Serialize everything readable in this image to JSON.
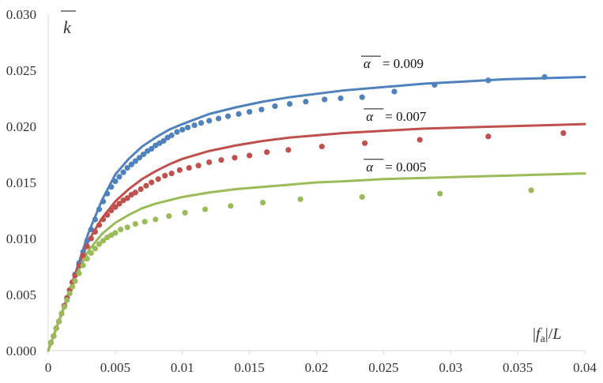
{
  "chart_data": {
    "type": "scatter",
    "title": "",
    "xlabel": "|fa|/L",
    "ylabel": "k",
    "xlim": [
      0,
      0.04
    ],
    "ylim": [
      0,
      0.03
    ],
    "grid": false,
    "x_ticks": [
      0,
      0.005,
      0.01,
      0.015,
      0.02,
      0.025,
      0.03,
      0.035,
      0.04
    ],
    "x_tick_labels": [
      "0",
      "0.005",
      "0.01",
      "0.015",
      "0.02",
      "0.025",
      "0.03",
      "0.035",
      "0.04"
    ],
    "y_ticks": [
      0,
      0.005,
      0.01,
      0.015,
      0.02,
      0.025,
      0.03
    ],
    "y_tick_labels": [
      "0.000",
      "0.005",
      "0.010",
      "0.015",
      "0.020",
      "0.025",
      "0.030"
    ],
    "series": [
      {
        "name": "α = 0.009",
        "alpha_symbol": "α",
        "alpha_value": "= 0.009",
        "color": "#4f81bd",
        "curve": {
          "x": [
            0,
            0.001,
            0.002,
            0.003,
            0.004,
            0.005,
            0.006,
            0.007,
            0.008,
            0.009,
            0.01,
            0.012,
            0.014,
            0.016,
            0.018,
            0.02,
            0.022,
            0.025,
            0.028,
            0.031,
            0.034,
            0.037,
            0.04
          ],
          "y": [
            0,
            0.0033,
            0.0068,
            0.0105,
            0.0134,
            0.0157,
            0.0171,
            0.0182,
            0.019,
            0.0197,
            0.0202,
            0.0211,
            0.0217,
            0.0222,
            0.0226,
            0.0229,
            0.0232,
            0.0235,
            0.0238,
            0.024,
            0.0242,
            0.0243,
            0.0244
          ]
        },
        "points": {
          "x": [
            0.0002,
            0.0004,
            0.0006,
            0.0008,
            0.001,
            0.0012,
            0.0014,
            0.0016,
            0.0018,
            0.002,
            0.0023,
            0.0026,
            0.0029,
            0.0032,
            0.0035,
            0.0038,
            0.0041,
            0.0044,
            0.0047,
            0.005,
            0.0053,
            0.0056,
            0.0059,
            0.0062,
            0.0065,
            0.0068,
            0.0071,
            0.0074,
            0.0077,
            0.008,
            0.0083,
            0.0086,
            0.0089,
            0.0092,
            0.0096,
            0.01,
            0.0104,
            0.0109,
            0.0114,
            0.012,
            0.0127,
            0.0134,
            0.0142,
            0.015,
            0.0159,
            0.0169,
            0.018,
            0.0192,
            0.0206,
            0.0218,
            0.0234,
            0.0258,
            0.0288,
            0.0328,
            0.037
          ],
          "y": [
            0.0007,
            0.0013,
            0.002,
            0.0026,
            0.0033,
            0.004,
            0.0047,
            0.0054,
            0.0061,
            0.0068,
            0.0078,
            0.0088,
            0.0098,
            0.0108,
            0.0117,
            0.0126,
            0.0133,
            0.014,
            0.0146,
            0.0151,
            0.0155,
            0.0159,
            0.0163,
            0.0166,
            0.0169,
            0.0172,
            0.0175,
            0.0178,
            0.018,
            0.0183,
            0.0185,
            0.0187,
            0.019,
            0.0192,
            0.0195,
            0.0197,
            0.0199,
            0.0201,
            0.0203,
            0.0205,
            0.0207,
            0.0209,
            0.0211,
            0.0213,
            0.0215,
            0.0218,
            0.022,
            0.0222,
            0.0224,
            0.0225,
            0.0226,
            0.0231,
            0.0237,
            0.0241,
            0.0244
          ]
        }
      },
      {
        "name": "α = 0.007",
        "alpha_symbol": "α",
        "alpha_value": "= 0.007",
        "color": "#c0504d",
        "curve": {
          "x": [
            0,
            0.001,
            0.002,
            0.003,
            0.004,
            0.005,
            0.006,
            0.007,
            0.008,
            0.009,
            0.01,
            0.012,
            0.014,
            0.016,
            0.018,
            0.02,
            0.022,
            0.025,
            0.028,
            0.031,
            0.034,
            0.037,
            0.04
          ],
          "y": [
            0,
            0.0033,
            0.0067,
            0.0098,
            0.0118,
            0.0133,
            0.0144,
            0.0153,
            0.016,
            0.0166,
            0.0171,
            0.0178,
            0.0183,
            0.0187,
            0.019,
            0.0192,
            0.0194,
            0.0196,
            0.0198,
            0.0199,
            0.02,
            0.0201,
            0.0202
          ]
        },
        "points": {
          "x": [
            0.0002,
            0.0004,
            0.0006,
            0.0008,
            0.001,
            0.0012,
            0.0014,
            0.0016,
            0.0018,
            0.002,
            0.0023,
            0.0026,
            0.0029,
            0.0032,
            0.0035,
            0.0038,
            0.0041,
            0.0044,
            0.0047,
            0.005,
            0.0053,
            0.0056,
            0.0059,
            0.0062,
            0.0065,
            0.0069,
            0.0073,
            0.0077,
            0.0082,
            0.0087,
            0.0092,
            0.0098,
            0.0105,
            0.0112,
            0.012,
            0.0129,
            0.0139,
            0.015,
            0.0163,
            0.0179,
            0.0204,
            0.0236,
            0.0277,
            0.0328,
            0.0384
          ],
          "y": [
            0.0007,
            0.0013,
            0.002,
            0.0026,
            0.0033,
            0.004,
            0.0047,
            0.0054,
            0.0061,
            0.0067,
            0.0076,
            0.0085,
            0.0093,
            0.01,
            0.0106,
            0.0112,
            0.0117,
            0.0121,
            0.0125,
            0.0128,
            0.0131,
            0.0134,
            0.0136,
            0.0139,
            0.0141,
            0.0144,
            0.0147,
            0.015,
            0.0153,
            0.0156,
            0.0158,
            0.0161,
            0.0163,
            0.0165,
            0.0168,
            0.017,
            0.0172,
            0.0174,
            0.0177,
            0.0179,
            0.0182,
            0.0185,
            0.0188,
            0.0191,
            0.0194
          ]
        }
      },
      {
        "name": "α = 0.005",
        "alpha_symbol": "α",
        "alpha_value": "= 0.005",
        "color": "#9bbb59",
        "curve": {
          "x": [
            0,
            0.001,
            0.002,
            0.003,
            0.004,
            0.005,
            0.006,
            0.007,
            0.008,
            0.009,
            0.01,
            0.012,
            0.014,
            0.016,
            0.018,
            0.02,
            0.022,
            0.025,
            0.028,
            0.031,
            0.034,
            0.037,
            0.04
          ],
          "y": [
            0,
            0.0033,
            0.0065,
            0.0089,
            0.0104,
            0.0114,
            0.0121,
            0.0127,
            0.0131,
            0.0134,
            0.0137,
            0.0141,
            0.0144,
            0.0146,
            0.0148,
            0.015,
            0.0151,
            0.0153,
            0.0154,
            0.0155,
            0.0156,
            0.0157,
            0.0158
          ]
        },
        "points": {
          "x": [
            0.0002,
            0.0004,
            0.0006,
            0.0008,
            0.001,
            0.0012,
            0.0014,
            0.0016,
            0.0018,
            0.002,
            0.0023,
            0.0026,
            0.0029,
            0.0032,
            0.0035,
            0.0038,
            0.0041,
            0.0044,
            0.0047,
            0.005,
            0.0054,
            0.0059,
            0.0065,
            0.0072,
            0.008,
            0.009,
            0.0102,
            0.0117,
            0.0136,
            0.016,
            0.0188,
            0.0234,
            0.0292,
            0.036
          ],
          "y": [
            0.0007,
            0.0013,
            0.002,
            0.0026,
            0.0033,
            0.0039,
            0.0045,
            0.0051,
            0.0057,
            0.0062,
            0.0069,
            0.0076,
            0.0082,
            0.0087,
            0.0091,
            0.0095,
            0.0098,
            0.0101,
            0.0103,
            0.0105,
            0.0108,
            0.011,
            0.0113,
            0.0115,
            0.0117,
            0.012,
            0.0123,
            0.0126,
            0.0129,
            0.0132,
            0.0135,
            0.0137,
            0.014,
            0.0143
          ]
        }
      }
    ]
  }
}
